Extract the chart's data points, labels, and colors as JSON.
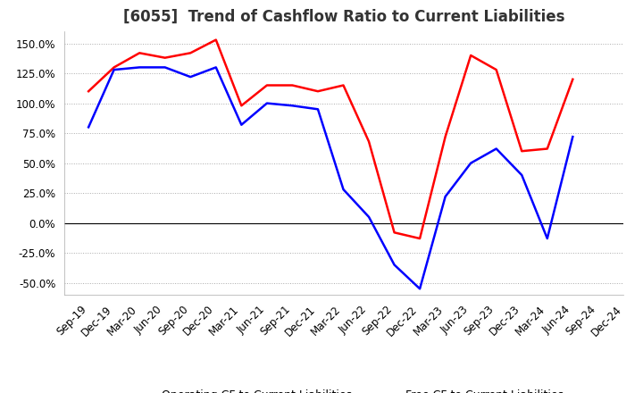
{
  "title": "[6055]  Trend of Cashflow Ratio to Current Liabilities",
  "x_labels": [
    "Sep-19",
    "Dec-19",
    "Mar-20",
    "Jun-20",
    "Sep-20",
    "Dec-20",
    "Mar-21",
    "Jun-21",
    "Sep-21",
    "Dec-21",
    "Mar-22",
    "Jun-22",
    "Sep-22",
    "Dec-22",
    "Mar-23",
    "Jun-23",
    "Sep-23",
    "Dec-23",
    "Mar-24",
    "Jun-24",
    "Sep-24",
    "Dec-24"
  ],
  "operating_cf": [
    1.1,
    1.3,
    1.42,
    1.38,
    1.42,
    1.53,
    0.98,
    1.15,
    1.15,
    1.1,
    1.15,
    0.68,
    -0.08,
    -0.13,
    0.72,
    1.4,
    1.28,
    0.6,
    0.62,
    1.2,
    null,
    null
  ],
  "free_cf": [
    0.8,
    1.28,
    1.3,
    1.3,
    1.22,
    1.3,
    0.82,
    1.0,
    0.98,
    0.95,
    0.28,
    0.05,
    -0.35,
    -0.55,
    0.22,
    0.5,
    0.62,
    0.4,
    -0.13,
    0.72,
    null,
    null
  ],
  "operating_color": "#ff0000",
  "free_color": "#0000ff",
  "ylim_min": -0.6,
  "ylim_max": 1.6,
  "yticks": [
    -0.5,
    -0.25,
    0.0,
    0.25,
    0.5,
    0.75,
    1.0,
    1.25,
    1.5
  ],
  "ytick_labels": [
    "-50.0%",
    "-25.0%",
    "0.0%",
    "25.0%",
    "50.0%",
    "75.0%",
    "100.0%",
    "125.0%",
    "150.0%"
  ],
  "grid_color": "#aaaaaa",
  "background_color": "#ffffff",
  "legend_operating": "Operating CF to Current Liabilities",
  "legend_free": "Free CF to Current Liabilities",
  "title_fontsize": 12,
  "tick_fontsize": 8.5,
  "legend_fontsize": 9
}
